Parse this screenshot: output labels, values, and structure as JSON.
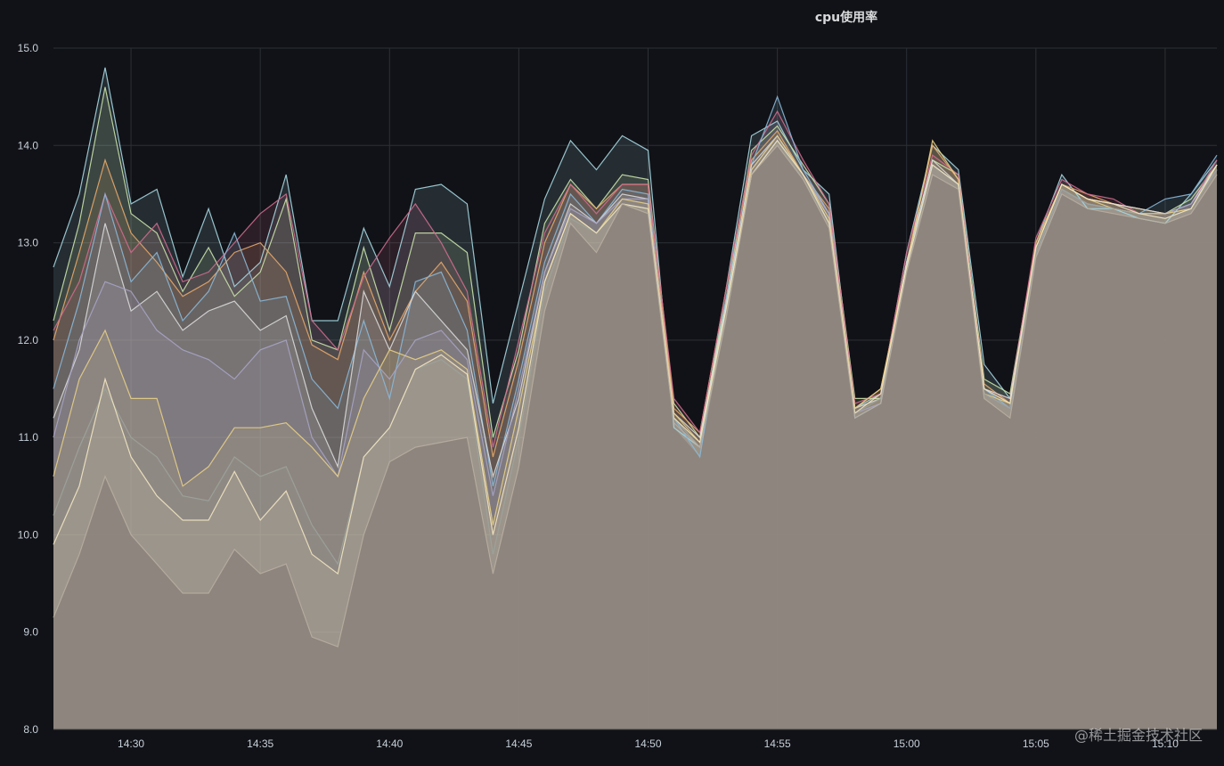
{
  "panel": {
    "title": "cpu使用率"
  },
  "watermark": "@稀土掘金技术社区",
  "colors": {
    "background": "#111217",
    "grid": "#2c3035",
    "area_fill": "#8a817b",
    "tick_text": "#c7d0d9"
  },
  "chart_data": {
    "type": "area",
    "title": "cpu使用率",
    "xlabel": "",
    "ylabel": "",
    "ylim": [
      8.0,
      15.0
    ],
    "yticks": [
      "8.0",
      "9.0",
      "10.0",
      "11.0",
      "12.0",
      "13.0",
      "14.0",
      "15.0"
    ],
    "xticks": [
      "14:30",
      "14:35",
      "14:40",
      "14:45",
      "14:50",
      "14:55",
      "15:00",
      "15:05",
      "15:10"
    ],
    "xlim": [
      "14:27",
      "15:12"
    ],
    "grid": true,
    "legend": "none",
    "x": [
      "14:27",
      "14:28",
      "14:29",
      "14:30",
      "14:31",
      "14:32",
      "14:33",
      "14:34",
      "14:35",
      "14:36",
      "14:37",
      "14:38",
      "14:39",
      "14:40",
      "14:41",
      "14:42",
      "14:43",
      "14:44",
      "14:45",
      "14:46",
      "14:47",
      "14:48",
      "14:49",
      "14:50",
      "14:51",
      "14:52",
      "14:53",
      "14:54",
      "14:55",
      "14:56",
      "14:57",
      "14:58",
      "14:59",
      "15:00",
      "15:01",
      "15:02",
      "15:03",
      "15:04",
      "15:05",
      "15:06",
      "15:07",
      "15:08",
      "15:09",
      "15:10",
      "15:11",
      "15:12"
    ],
    "series": [
      {
        "color": "#a5d6e0",
        "values": [
          12.75,
          13.5,
          14.8,
          13.4,
          13.55,
          12.65,
          13.35,
          12.55,
          12.8,
          13.7,
          12.2,
          12.2,
          13.15,
          12.55,
          13.55,
          13.6,
          13.4,
          11.35,
          12.4,
          13.45,
          14.05,
          13.75,
          14.1,
          13.95,
          11.1,
          10.9,
          12.5,
          14.1,
          14.25,
          13.75,
          13.5,
          11.3,
          11.45,
          12.9,
          14.0,
          13.75,
          11.75,
          11.4,
          13.0,
          13.7,
          13.35,
          13.35,
          13.25,
          13.2,
          13.5,
          13.85
        ]
      },
      {
        "color": "#c9e2a8",
        "values": [
          12.2,
          13.2,
          14.6,
          13.3,
          13.1,
          12.5,
          12.95,
          12.45,
          12.7,
          13.45,
          12.0,
          11.9,
          12.95,
          12.1,
          13.1,
          13.1,
          12.9,
          11.0,
          11.9,
          13.2,
          13.65,
          13.35,
          13.7,
          13.65,
          11.35,
          11.0,
          12.4,
          13.95,
          14.2,
          13.8,
          13.4,
          11.4,
          11.4,
          12.8,
          13.85,
          13.7,
          11.6,
          11.45,
          13.0,
          13.6,
          13.45,
          13.4,
          13.35,
          13.3,
          13.45,
          13.8
        ]
      },
      {
        "color": "#e7a86a",
        "values": [
          12.0,
          12.9,
          13.85,
          13.1,
          12.8,
          12.45,
          12.6,
          12.9,
          13.0,
          12.7,
          11.95,
          11.8,
          12.7,
          12.0,
          12.5,
          12.8,
          12.4,
          10.8,
          11.8,
          13.0,
          13.6,
          13.35,
          13.6,
          13.6,
          11.3,
          11.05,
          12.5,
          13.85,
          14.15,
          13.7,
          13.35,
          11.3,
          11.5,
          12.8,
          14.0,
          13.65,
          11.55,
          11.35,
          13.0,
          13.6,
          13.5,
          13.4,
          13.35,
          13.3,
          13.35,
          13.8
        ]
      },
      {
        "color": "#d06c8d",
        "values": [
          12.1,
          12.6,
          13.5,
          12.9,
          13.2,
          12.6,
          12.7,
          13.0,
          13.3,
          13.5,
          12.2,
          11.9,
          12.65,
          13.05,
          13.4,
          13.0,
          12.5,
          10.9,
          12.0,
          13.1,
          13.6,
          13.3,
          13.6,
          13.6,
          11.4,
          11.05,
          12.5,
          13.9,
          14.35,
          13.85,
          13.4,
          11.35,
          11.45,
          12.9,
          13.9,
          13.7,
          11.5,
          11.4,
          13.05,
          13.65,
          13.5,
          13.45,
          13.3,
          13.3,
          13.4,
          13.85
        ]
      },
      {
        "color": "#8ab8d8",
        "values": [
          11.5,
          12.4,
          13.5,
          12.6,
          12.9,
          12.2,
          12.5,
          13.1,
          12.4,
          12.45,
          11.6,
          11.3,
          12.2,
          11.4,
          12.6,
          12.7,
          12.1,
          10.5,
          11.6,
          12.8,
          13.5,
          13.2,
          13.55,
          13.5,
          11.2,
          10.8,
          12.4,
          13.8,
          14.5,
          13.75,
          13.3,
          11.2,
          11.35,
          12.8,
          13.8,
          13.6,
          11.5,
          11.3,
          12.9,
          13.55,
          13.4,
          13.35,
          13.3,
          13.45,
          13.5,
          13.9
        ]
      },
      {
        "color": "#d9d9d9",
        "values": [
          11.2,
          11.9,
          13.2,
          12.3,
          12.5,
          12.1,
          12.3,
          12.4,
          12.1,
          12.25,
          11.3,
          10.7,
          12.5,
          11.9,
          12.5,
          12.2,
          11.9,
          10.6,
          11.4,
          12.7,
          13.4,
          13.2,
          13.5,
          13.45,
          11.25,
          11.0,
          12.35,
          13.8,
          14.1,
          13.7,
          13.3,
          11.3,
          11.4,
          12.8,
          13.85,
          13.6,
          11.5,
          11.4,
          12.95,
          13.6,
          13.45,
          13.4,
          13.35,
          13.3,
          13.4,
          13.8
        ]
      },
      {
        "color": "#a7a3c4",
        "values": [
          11.0,
          12.0,
          12.6,
          12.5,
          12.1,
          11.9,
          11.8,
          11.6,
          11.9,
          12.0,
          11.0,
          10.6,
          11.9,
          11.6,
          12.0,
          12.1,
          11.8,
          10.4,
          11.5,
          12.7,
          13.35,
          13.2,
          13.45,
          13.45,
          11.2,
          10.9,
          12.3,
          13.75,
          14.1,
          13.7,
          13.3,
          11.25,
          11.35,
          12.75,
          13.8,
          13.6,
          11.45,
          11.3,
          12.9,
          13.55,
          13.4,
          13.35,
          13.3,
          13.3,
          13.4,
          13.75
        ]
      },
      {
        "color": "#e6cf86",
        "values": [
          10.6,
          11.6,
          12.1,
          11.4,
          11.4,
          10.5,
          10.7,
          11.1,
          11.1,
          11.15,
          10.9,
          10.6,
          11.4,
          11.9,
          11.8,
          11.9,
          11.7,
          10.1,
          11.3,
          12.6,
          13.3,
          13.1,
          13.45,
          13.4,
          11.25,
          10.95,
          12.3,
          13.75,
          14.1,
          13.7,
          13.25,
          11.3,
          11.5,
          12.75,
          14.05,
          13.65,
          11.45,
          11.35,
          12.95,
          13.6,
          13.45,
          13.35,
          13.3,
          13.3,
          13.35,
          13.8
        ]
      },
      {
        "color": "#9ca39a",
        "values": [
          10.2,
          10.9,
          11.5,
          11.0,
          10.8,
          10.4,
          10.35,
          10.8,
          10.6,
          10.7,
          10.1,
          9.7,
          10.8,
          11.1,
          11.7,
          11.8,
          11.6,
          9.8,
          11.0,
          12.5,
          13.25,
          13.1,
          13.4,
          13.35,
          11.2,
          10.9,
          12.25,
          13.7,
          14.05,
          13.65,
          13.2,
          11.25,
          11.4,
          12.7,
          13.8,
          13.6,
          11.45,
          11.3,
          12.9,
          13.55,
          13.4,
          13.35,
          13.3,
          13.25,
          13.35,
          13.75
        ]
      },
      {
        "color": "#f2e6c0",
        "values": [
          9.9,
          10.5,
          11.6,
          10.8,
          10.4,
          10.15,
          10.15,
          10.65,
          10.15,
          10.45,
          9.8,
          9.6,
          10.8,
          11.1,
          11.7,
          11.85,
          11.65,
          10.0,
          11.1,
          12.6,
          13.3,
          13.1,
          13.4,
          13.35,
          11.2,
          10.95,
          12.3,
          13.7,
          14.05,
          13.7,
          13.2,
          11.25,
          11.45,
          12.75,
          13.8,
          13.6,
          11.5,
          11.35,
          12.95,
          13.6,
          13.45,
          13.4,
          13.3,
          13.25,
          13.35,
          13.8
        ]
      },
      {
        "color": "#b8ad9f",
        "values": [
          9.15,
          9.8,
          10.6,
          10.0,
          9.7,
          9.4,
          9.4,
          9.85,
          9.6,
          9.7,
          8.95,
          8.85,
          10.0,
          10.75,
          10.9,
          10.95,
          11.0,
          9.6,
          10.7,
          12.3,
          13.2,
          12.9,
          13.4,
          13.3,
          11.15,
          10.9,
          12.2,
          13.7,
          14.0,
          13.65,
          13.15,
          11.2,
          11.35,
          12.7,
          13.7,
          13.55,
          11.4,
          11.2,
          12.85,
          13.5,
          13.35,
          13.3,
          13.25,
          13.2,
          13.3,
          13.7
        ]
      }
    ]
  }
}
